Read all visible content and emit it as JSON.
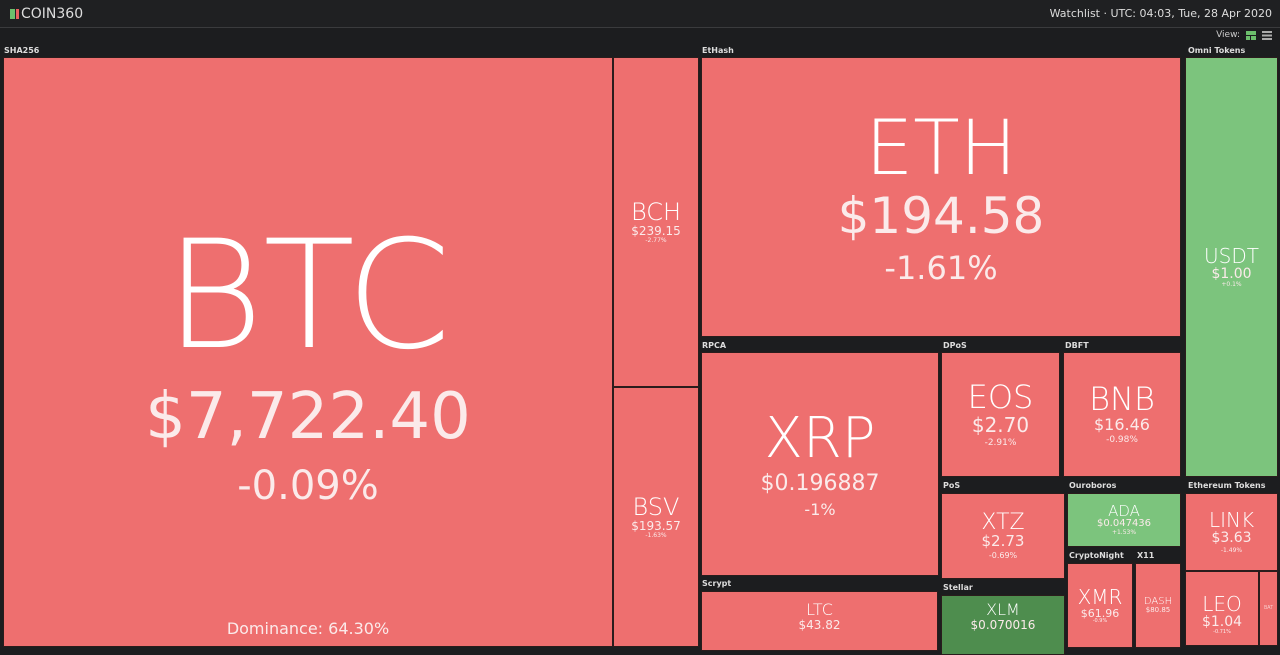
{
  "header": {
    "logo": "COIN360",
    "watchlist": "Watchlist",
    "time": "UTC: 04:03, Tue, 28 Apr 2020",
    "view_label": "View:"
  },
  "colors": {
    "down": "#ee6f6f",
    "up": "#7cc47d",
    "strong_up": "#4e8d4e"
  },
  "groups": {
    "sha256": "SHA256",
    "ethash": "EtHash",
    "omni": "Omni Tokens",
    "rpca": "RPCA",
    "dpos": "DPoS",
    "dbft": "DBFT",
    "pos": "PoS",
    "ouroboros": "Ouroboros",
    "cryptonight": "CryptoNight",
    "x11": "X11",
    "stellar": "Stellar",
    "scrypt": "Scrypt",
    "eth_tokens": "Ethereum Tokens"
  },
  "coins": {
    "btc": {
      "sym": "BTC",
      "price": "$7,722.40",
      "change": "-0.09%",
      "dominance": "Dominance: 64.30%"
    },
    "bch": {
      "sym": "BCH",
      "price": "$239.15",
      "change": "-2.77%"
    },
    "bsv": {
      "sym": "BSV",
      "price": "$193.57",
      "change": "-1.63%"
    },
    "eth": {
      "sym": "ETH",
      "price": "$194.58",
      "change": "-1.61%"
    },
    "usdt": {
      "sym": "USDT",
      "price": "$1.00",
      "change": "+0.1%"
    },
    "xrp": {
      "sym": "XRP",
      "price": "$0.196887",
      "change": "-1%"
    },
    "eos": {
      "sym": "EOS",
      "price": "$2.70",
      "change": "-2.91%"
    },
    "bnb": {
      "sym": "BNB",
      "price": "$16.46",
      "change": "-0.98%"
    },
    "xtz": {
      "sym": "XTZ",
      "price": "$2.73",
      "change": "-0.69%"
    },
    "ada": {
      "sym": "ADA",
      "price": "$0.047436",
      "change": "+1.53%"
    },
    "xmr": {
      "sym": "XMR",
      "price": "$61.96",
      "change": "-0.9%"
    },
    "dash": {
      "sym": "DASH",
      "price": "$80.85"
    },
    "xlm": {
      "sym": "XLM",
      "price": "$0.070016"
    },
    "ltc": {
      "sym": "LTC",
      "price": "$43.82"
    },
    "link": {
      "sym": "LINK",
      "price": "$3.63",
      "change": "-1.49%"
    },
    "leo": {
      "sym": "LEO",
      "price": "$1.04",
      "change": "-0.71%"
    },
    "bat": {
      "sym": "BAT"
    }
  }
}
